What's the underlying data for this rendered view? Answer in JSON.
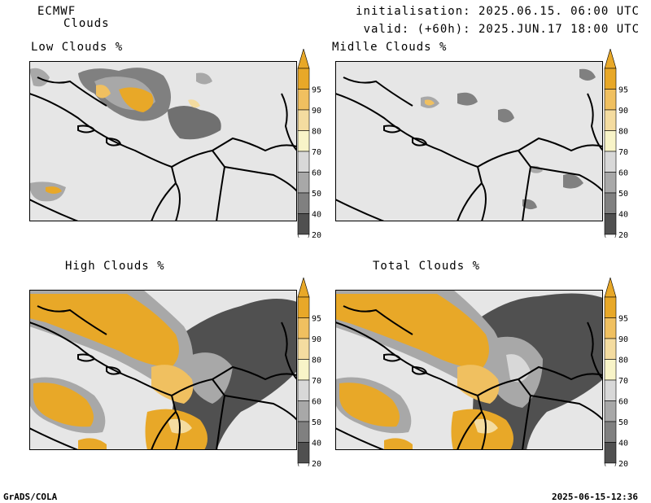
{
  "header": {
    "model": "ECMWF",
    "product": "Clouds",
    "initialisation": "initialisation: 2025.06.15. 06:00 UTC",
    "valid": "valid: (+60h): 2025.JUN.17 18:00 UTC"
  },
  "panels": [
    {
      "id": "low",
      "title": "Low Clouds %"
    },
    {
      "id": "middle",
      "title": "Midlle Clouds %"
    },
    {
      "id": "high",
      "title": "High Clouds %"
    },
    {
      "id": "total",
      "title": "Total Clouds %"
    }
  ],
  "colorbar": {
    "labels": [
      "95",
      "90",
      "80",
      "70",
      "60",
      "50",
      "40",
      "20"
    ],
    "colors": [
      "#e8a828",
      "#f0c060",
      "#f4dca0",
      "#f8f4c8",
      "#d8d8d8",
      "#a8a8a8",
      "#808080",
      "#505050"
    ],
    "background_color": "#e6e6e6"
  },
  "footer": {
    "left": "GrADS/COLA",
    "right": "2025-06-15-12:36"
  },
  "colors": {
    "orange": "#eeb035",
    "light_orange": "#f5d890",
    "pale": "#f8f4c8",
    "gray_bg": "#e6e6e6",
    "mid_gray": "#a0a0a0",
    "dark_gray": "#606060"
  }
}
